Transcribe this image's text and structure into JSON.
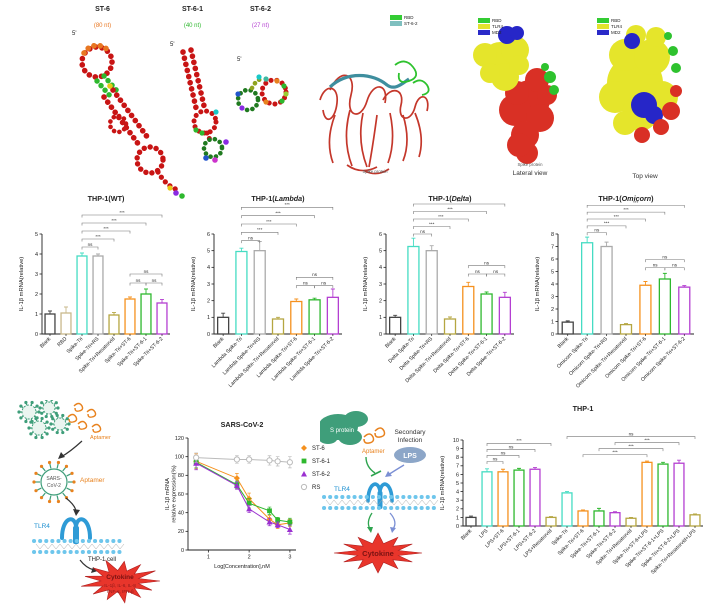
{
  "panels": {
    "rna": {
      "structures": [
        {
          "name": "ST-6",
          "nt": "(80 nt)",
          "nt_color": "#E87722",
          "five_prime": "5'"
        },
        {
          "name": "ST-6-1",
          "nt": "(40 nt)",
          "nt_color": "#2EB82E",
          "five_prime": "5'"
        },
        {
          "name": "ST-6-2",
          "nt": "(27 nt)",
          "nt_color": "#B43FD1",
          "five_prime": "5'"
        }
      ]
    },
    "proteins": {
      "ribbon": {
        "caption": "Spike protein",
        "legend": [
          {
            "label": "RBD",
            "color": "#33CC33"
          },
          {
            "label": "ST-6-2",
            "color": "#7FBFBF"
          }
        ]
      },
      "lateral": {
        "caption": "Spike protein",
        "view_label": "Lateral view",
        "legend": [
          {
            "label": "RBD",
            "color": "#33CC33"
          },
          {
            "label": "TLR4",
            "color": "#E3E32E"
          },
          {
            "label": "MD2",
            "color": "#2A2AC8"
          }
        ]
      },
      "top": {
        "view_label": "Top view",
        "legend": [
          {
            "label": "RBD",
            "color": "#33CC33"
          },
          {
            "label": "TLR4",
            "color": "#E3E32E"
          },
          {
            "label": "MD2",
            "color": "#2A2AC8"
          }
        ]
      }
    },
    "schematic_infection": {
      "aptamer_top": "Aptamer",
      "virus_line1": "SARS-",
      "virus_line2": "CoV-2",
      "aptamer": "Aptamer",
      "receptor": "TLR4",
      "cell": "THP-1 cell",
      "cytokine": "Cytokine",
      "cytokine_sub1": "IL-1β, IL-6, IL-8",
      "cytokine_sub2": "TNF-α, IFN-β"
    },
    "schematic_lps": {
      "s_protein": "S protein",
      "aptamer": "Aptamer",
      "secondary_line1": "Secondary",
      "secondary_line2": "Infection",
      "lps": "LPS",
      "receptor": "TLR4",
      "cytokine": "Cytokine"
    }
  },
  "chart_data": [
    {
      "type": "bar",
      "title": "THP-1(WT)",
      "title_parts": {
        "pre": "THP-1(",
        "em": "WT",
        "post": ")",
        "italic": false
      },
      "ylabel": "IL-1β mRNA(relative)",
      "ylim": [
        0,
        5
      ],
      "yticks": [
        0,
        1,
        2,
        3,
        4,
        5
      ],
      "xlabel": "",
      "categories": [
        "Blank",
        "RBD",
        "Spike-Tri",
        "Spike-Tri+RS",
        "Spike-Tri+Resatorvid",
        "Spike-Tri+ST-6",
        "Spike-Tri+ST-6-1",
        "Spike-Tri+ST-6-2"
      ],
      "values": [
        1.0,
        1.05,
        3.9,
        3.9,
        0.95,
        1.75,
        2.0,
        1.55
      ],
      "errors": [
        0.15,
        0.3,
        0.15,
        0.1,
        0.12,
        0.1,
        0.25,
        0.18
      ],
      "colors": [
        "#444444",
        "#C9B98C",
        "#45DCC3",
        "#AAAAAA",
        "#B5A642",
        "#F5911E",
        "#2EB82E",
        "#B43FD1"
      ],
      "sig": [
        {
          "i": 2,
          "j": 3,
          "label": "ns",
          "y": 4.35
        },
        {
          "i": 2,
          "j": 4,
          "label": "***",
          "y": 4.75
        },
        {
          "i": 2,
          "j": 5,
          "label": "***",
          "y": 5.15
        },
        {
          "i": 2,
          "j": 6,
          "label": "***",
          "y": 5.55
        },
        {
          "i": 2,
          "j": 7,
          "label": "***",
          "y": 5.95
        },
        {
          "i": 5,
          "j": 6,
          "label": "ns",
          "y": 2.55
        },
        {
          "i": 6,
          "j": 7,
          "label": "ns",
          "y": 2.55
        },
        {
          "i": 5,
          "j": 7,
          "label": "ns",
          "y": 3.0
        }
      ]
    },
    {
      "type": "bar",
      "title": "THP-1(Lambda)",
      "title_parts": {
        "pre": "THP-1(",
        "em": "Lambda",
        "post": ")",
        "italic": true
      },
      "ylabel": "IL-1β mRNA(relative)",
      "ylim": [
        0,
        6
      ],
      "yticks": [
        0,
        1,
        2,
        3,
        4,
        5,
        6
      ],
      "xlabel": "",
      "categories": [
        "Blank",
        "Lambda Spike-Tri",
        "Lambda Spike-Tri+RS",
        "Lambda Spike-Tri+Resatorvid",
        "Lambda Spike-Tri+ST-6",
        "Lambda Spike-Tri+ST-6-1",
        "Lambda Spike-Tri+ST-6-2"
      ],
      "values": [
        1.0,
        4.95,
        5.0,
        0.9,
        1.95,
        2.05,
        2.2
      ],
      "errors": [
        0.25,
        0.2,
        0.55,
        0.1,
        0.15,
        0.1,
        0.5
      ],
      "colors": [
        "#444444",
        "#45DCC3",
        "#AAAAAA",
        "#B5A642",
        "#F5911E",
        "#2EB82E",
        "#B43FD1"
      ],
      "sig": [
        {
          "i": 1,
          "j": 2,
          "label": "ns",
          "y": 5.6
        },
        {
          "i": 1,
          "j": 3,
          "label": "***",
          "y": 6.1
        },
        {
          "i": 1,
          "j": 4,
          "label": "***",
          "y": 6.6
        },
        {
          "i": 1,
          "j": 5,
          "label": "***",
          "y": 7.1
        },
        {
          "i": 1,
          "j": 6,
          "label": "***",
          "y": 7.6
        },
        {
          "i": 4,
          "j": 5,
          "label": "ns",
          "y": 2.9
        },
        {
          "i": 5,
          "j": 6,
          "label": "ns",
          "y": 2.9
        },
        {
          "i": 4,
          "j": 6,
          "label": "ns",
          "y": 3.4
        }
      ]
    },
    {
      "type": "bar",
      "title": "THP-1(Delta)",
      "title_parts": {
        "pre": "THP-1(",
        "em": "Delta",
        "post": ")",
        "italic": true
      },
      "ylabel": "IL-1β mRNA(relative)",
      "ylim": [
        0,
        6
      ],
      "yticks": [
        0,
        1,
        2,
        3,
        4,
        5,
        6
      ],
      "xlabel": "",
      "categories": [
        "Blank",
        "Delta Spike-Tri",
        "Delta Spike-Tri+RS",
        "Delta Spike-Tri+Resatorvid",
        "Delta Spike-Tri+ST-6",
        "Delta Spike-Tri+ST-6-1",
        "Delta Spike-Tri+ST-6-2"
      ],
      "values": [
        1.0,
        5.25,
        5.0,
        0.9,
        2.85,
        2.4,
        2.2
      ],
      "errors": [
        0.12,
        0.5,
        0.3,
        0.12,
        0.25,
        0.12,
        0.3
      ],
      "colors": [
        "#444444",
        "#45DCC3",
        "#AAAAAA",
        "#B5A642",
        "#F5911E",
        "#2EB82E",
        "#B43FD1"
      ],
      "sig": [
        {
          "i": 1,
          "j": 2,
          "label": "ns",
          "y": 6.0
        },
        {
          "i": 1,
          "j": 3,
          "label": "***",
          "y": 6.45
        },
        {
          "i": 1,
          "j": 4,
          "label": "***",
          "y": 6.9
        },
        {
          "i": 1,
          "j": 5,
          "label": "***",
          "y": 7.35
        },
        {
          "i": 1,
          "j": 6,
          "label": "***",
          "y": 7.8
        },
        {
          "i": 4,
          "j": 5,
          "label": "ns",
          "y": 3.6
        },
        {
          "i": 5,
          "j": 6,
          "label": "ns",
          "y": 3.6
        },
        {
          "i": 4,
          "j": 6,
          "label": "ns",
          "y": 4.1
        }
      ]
    },
    {
      "type": "bar",
      "title": "THP-1(Omicorn)",
      "title_parts": {
        "pre": "THP-1(",
        "em": "Omicorn",
        "post": ")",
        "italic": true
      },
      "ylabel": "IL-1β mRNA(relative)",
      "ylim": [
        0,
        8
      ],
      "yticks": [
        0,
        1,
        2,
        3,
        4,
        5,
        6,
        7,
        8
      ],
      "xlabel": "",
      "categories": [
        "Blank",
        "Omicorn Spike-Tri",
        "Omicorn Spike-Tri+RS",
        "Omicorn Spike-Tri+Resatorvid",
        "Omicorn Spike-Tri+ST-6",
        "Omicorn Spike-Tri+ST-6-1",
        "Omicorn Spike-Tri+ST-6-2"
      ],
      "values": [
        0.95,
        7.3,
        7.0,
        0.75,
        3.9,
        4.4,
        3.75
      ],
      "errors": [
        0.1,
        0.45,
        0.35,
        0.08,
        0.3,
        0.45,
        0.12
      ],
      "colors": [
        "#444444",
        "#45DCC3",
        "#AAAAAA",
        "#B5A642",
        "#F5911E",
        "#2EB82E",
        "#B43FD1"
      ],
      "sig": [
        {
          "i": 1,
          "j": 2,
          "label": "ns",
          "y": 8.1
        },
        {
          "i": 1,
          "j": 3,
          "label": "***",
          "y": 8.65
        },
        {
          "i": 1,
          "j": 4,
          "label": "***",
          "y": 9.2
        },
        {
          "i": 1,
          "j": 5,
          "label": "***",
          "y": 9.75
        },
        {
          "i": 1,
          "j": 6,
          "label": "***",
          "y": 10.3
        },
        {
          "i": 4,
          "j": 5,
          "label": "ns",
          "y": 5.3
        },
        {
          "i": 5,
          "j": 6,
          "label": "ns",
          "y": 5.3
        },
        {
          "i": 4,
          "j": 6,
          "label": "ns",
          "y": 5.95
        }
      ]
    },
    {
      "type": "line",
      "title": "SARS-CoV-2",
      "title_parts": {
        "pre": "SARS-CoV-2",
        "em": "",
        "post": "",
        "italic": false
      },
      "ylabel": [
        "IL-1β mRNA",
        "relative expression(%)"
      ],
      "xlabel": "Log[Concentration],nM",
      "ylim": [
        0,
        120
      ],
      "yticks": [
        0,
        20,
        40,
        60,
        80,
        100,
        120
      ],
      "xlim": [
        0.5,
        3.15
      ],
      "xticks": [
        1,
        2,
        3
      ],
      "x": [
        0.7,
        1.7,
        2.0,
        2.5,
        2.7,
        3.0
      ],
      "series": [
        {
          "name": "ST-6",
          "color": "#F5911E",
          "marker": "diamond",
          "values": [
            95,
            77,
            55,
            33,
            27,
            29
          ],
          "errors": [
            8,
            5,
            6,
            4,
            4,
            4
          ]
        },
        {
          "name": "ST-6-1",
          "color": "#2EB82E",
          "marker": "square",
          "values": [
            94,
            70,
            50,
            42,
            32,
            30
          ],
          "errors": [
            6,
            4,
            5,
            4,
            3,
            4
          ]
        },
        {
          "name": "ST-6-2",
          "color": "#9B30D0",
          "marker": "triangle",
          "values": [
            93,
            69,
            44,
            30,
            27,
            22
          ],
          "errors": [
            7,
            4,
            4,
            4,
            3,
            5
          ]
        },
        {
          "name": "RS",
          "color": "#BBBBBB",
          "marker": "circle-open",
          "values": [
            99,
            97,
            97,
            96,
            95,
            94
          ],
          "errors": [
            5,
            4,
            4,
            5,
            5,
            6
          ]
        }
      ],
      "legend_position": "right"
    },
    {
      "type": "bar",
      "title": "THP-1",
      "title_parts": {
        "pre": "THP-1",
        "em": "",
        "post": "",
        "italic": false
      },
      "ylabel": "IL-1β mRNA(relative)",
      "ylim": [
        0,
        10
      ],
      "yticks": [
        0,
        1,
        2,
        3,
        4,
        5,
        6,
        7,
        8,
        9,
        10
      ],
      "xlabel": "",
      "categories": [
        "Blank",
        "LPS",
        "LPS+ST-6",
        "LPS+ST-6-1",
        "LPS+ST-6-2",
        "LPS+Resatorvid",
        "Spike-Tri",
        "Spike-Tri+ST-6",
        "Spike-Tri+ST-6-1",
        "Spike-Tri+ST-6-2",
        "Spike-Tri+Resatorvid",
        "Spike-Tri+ST-6+LPS",
        "Spike-Tri+ST-6-1+LPS",
        "Spike-Tri+ST-6-2+LPS",
        "Spike-Tri+Resatorvid+LPS"
      ],
      "values": [
        1.0,
        6.3,
        6.3,
        6.5,
        6.6,
        1.0,
        3.85,
        1.75,
        1.75,
        1.55,
        0.9,
        7.4,
        7.2,
        7.3,
        1.3
      ],
      "errors": [
        0.15,
        0.35,
        0.3,
        0.2,
        0.2,
        0.1,
        0.15,
        0.12,
        0.3,
        0.12,
        0.1,
        0.15,
        0.2,
        0.35,
        0.1
      ],
      "colors": [
        "#444444",
        "#45DCC3",
        "#F5911E",
        "#2EB82E",
        "#B43FD1",
        "#B5A642",
        "#45DCC3",
        "#F5911E",
        "#2EB82E",
        "#B43FD1",
        "#B5A642",
        "#F5911E",
        "#2EB82E",
        "#B43FD1",
        "#B5A642"
      ],
      "sig": [
        {
          "i": 1,
          "j": 2,
          "label": "ns",
          "y": 7.5
        },
        {
          "i": 1,
          "j": 3,
          "label": "ns",
          "y": 8.2
        },
        {
          "i": 1,
          "j": 4,
          "label": "ns",
          "y": 8.9
        },
        {
          "i": 1,
          "j": 5,
          "label": "***",
          "y": 9.6
        },
        {
          "i": 7,
          "j": 11,
          "label": "***",
          "y": 8.3
        },
        {
          "i": 8,
          "j": 12,
          "label": "***",
          "y": 9.0
        },
        {
          "i": 9,
          "j": 13,
          "label": "***",
          "y": 9.7
        },
        {
          "i": 6,
          "j": 14,
          "label": "ns",
          "y": 10.4
        }
      ]
    }
  ]
}
